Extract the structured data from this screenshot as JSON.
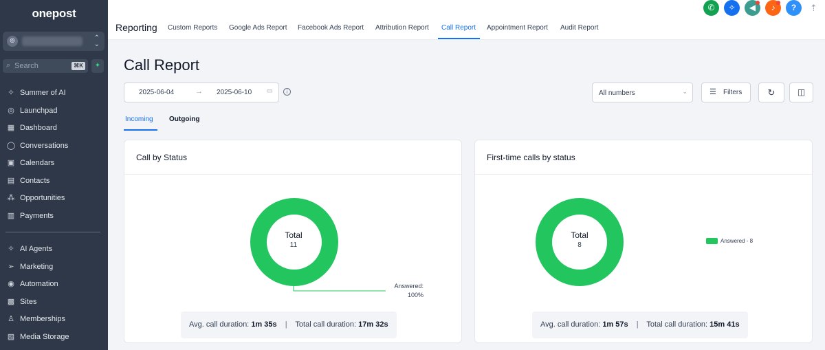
{
  "sidebar": {
    "logo": "onepost",
    "search_label": "Search",
    "search_shortcut": "⌘K",
    "items": [
      {
        "label": "Summer of AI",
        "icon": "sparkle-icon"
      },
      {
        "label": "Launchpad",
        "icon": "rocket-icon"
      },
      {
        "label": "Dashboard",
        "icon": "dashboard-icon"
      },
      {
        "label": "Conversations",
        "icon": "chat-bubble-icon"
      },
      {
        "label": "Calendars",
        "icon": "calendar-icon"
      },
      {
        "label": "Contacts",
        "icon": "contacts-icon"
      },
      {
        "label": "Opportunities",
        "icon": "opportunities-icon"
      },
      {
        "label": "Payments",
        "icon": "payments-icon"
      },
      {
        "label": "AI Agents",
        "icon": "sparkle-icon"
      },
      {
        "label": "Marketing",
        "icon": "paper-plane-icon"
      },
      {
        "label": "Automation",
        "icon": "automation-icon"
      },
      {
        "label": "Sites",
        "icon": "globe-icon"
      },
      {
        "label": "Memberships",
        "icon": "memberships-icon"
      },
      {
        "label": "Media Storage",
        "icon": "image-icon"
      }
    ]
  },
  "header": {
    "title": "Reporting",
    "tabs": [
      {
        "label": "Custom Reports"
      },
      {
        "label": "Google Ads Report"
      },
      {
        "label": "Facebook Ads Report"
      },
      {
        "label": "Attribution Report"
      },
      {
        "label": "Call Report",
        "active": true
      },
      {
        "label": "Appointment Report"
      },
      {
        "label": "Audit Report"
      }
    ],
    "action_icons": [
      {
        "name": "phone-icon",
        "color": "#12a150"
      },
      {
        "name": "magic-icon",
        "color": "#1570ef"
      },
      {
        "name": "megaphone-icon",
        "color": "#3b9c8f"
      },
      {
        "name": "bell-icon",
        "color": "#fb6514"
      },
      {
        "name": "help-icon",
        "color": "#2e90fa"
      }
    ]
  },
  "page": {
    "title": "Call Report",
    "date_start": "2025-06-04",
    "date_end": "2025-06-10",
    "numbers_select": "All numbers",
    "filters_label": "Filters",
    "subtabs": [
      "Incoming",
      "Outgoing"
    ],
    "active_subtab": "Incoming"
  },
  "colors": {
    "answered": "#22c55e",
    "accent": "#1570ef"
  },
  "chart_data": [
    {
      "type": "pie",
      "title": "Call by Status",
      "center_label": "Total",
      "total": "11",
      "slices": [
        {
          "label": "Answered",
          "value": 11,
          "percent": "100%"
        }
      ],
      "callout": [
        "Answered:",
        "100%"
      ],
      "avg_label": "Avg. call duration:",
      "avg_value": "1m 35s",
      "total_label": "Total call duration:",
      "total_value": "17m 32s"
    },
    {
      "type": "pie",
      "title": "First-time calls by status",
      "center_label": "Total",
      "total": "8",
      "slices": [
        {
          "label": "Answered",
          "value": 8
        }
      ],
      "legend": "Answered - 8",
      "avg_label": "Avg. call duration:",
      "avg_value": "1m 57s",
      "total_label": "Total call duration:",
      "total_value": "15m 41s"
    }
  ]
}
